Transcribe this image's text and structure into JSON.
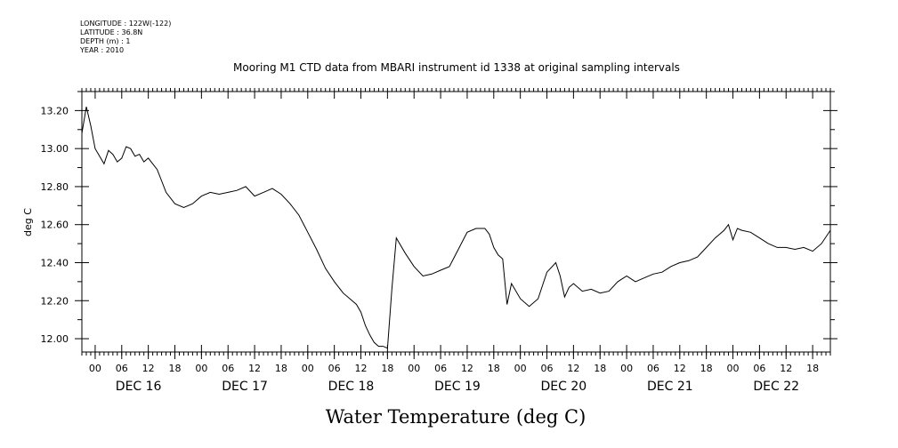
{
  "metadata": [
    {
      "label": "LONGITUDE",
      "value": "122W(-122)"
    },
    {
      "label": "LATITUDE",
      "value": "36.8N"
    },
    {
      "label": "DEPTH (m)",
      "value": "1"
    },
    {
      "label": "YEAR",
      "value": "2010"
    }
  ],
  "chart_data": {
    "type": "line",
    "title": "Mooring M1 CTD data from MBARI instrument id 1338 at original sampling intervals",
    "xlabel": "Water Temperature (deg C)",
    "ylabel": "deg C",
    "ylim": [
      11.93,
      13.3
    ],
    "yticks": [
      12.0,
      12.2,
      12.4,
      12.6,
      12.8,
      13.0,
      13.2
    ],
    "ytick_labels": [
      "12.00",
      "12.20",
      "12.40",
      "12.60",
      "12.80",
      "13.00",
      "13.20"
    ],
    "xlim": [
      "2010-12-15T21:00",
      "2010-12-22T22:00"
    ],
    "x_hour_ticks": [
      0,
      6,
      12,
      18
    ],
    "date_labels": [
      {
        "date": "2010-12-16",
        "label": "DEC 16"
      },
      {
        "date": "2010-12-17",
        "label": "DEC 17"
      },
      {
        "date": "2010-12-18",
        "label": "DEC 18"
      },
      {
        "date": "2010-12-19",
        "label": "DEC 19"
      },
      {
        "date": "2010-12-20",
        "label": "DEC 20"
      },
      {
        "date": "2010-12-21",
        "label": "DEC 21"
      },
      {
        "date": "2010-12-22",
        "label": "DEC 22"
      }
    ],
    "grid": false,
    "series": [
      {
        "color": "#000000",
        "x": [
          "2010-12-15T21:00",
          "2010-12-15T22:00",
          "2010-12-15T23:00",
          "2010-12-16T00:00",
          "2010-12-16T01:00",
          "2010-12-16T02:00",
          "2010-12-16T03:00",
          "2010-12-16T04:00",
          "2010-12-16T05:00",
          "2010-12-16T06:00",
          "2010-12-16T07:00",
          "2010-12-16T08:00",
          "2010-12-16T09:00",
          "2010-12-16T10:00",
          "2010-12-16T11:00",
          "2010-12-16T12:00",
          "2010-12-16T13:00",
          "2010-12-16T14:00",
          "2010-12-16T15:00",
          "2010-12-16T16:00",
          "2010-12-16T18:00",
          "2010-12-16T20:00",
          "2010-12-16T22:00",
          "2010-12-17T00:00",
          "2010-12-17T02:00",
          "2010-12-17T04:00",
          "2010-12-17T06:00",
          "2010-12-17T08:00",
          "2010-12-17T10:00",
          "2010-12-17T12:00",
          "2010-12-17T14:00",
          "2010-12-17T16:00",
          "2010-12-17T18:00",
          "2010-12-17T20:00",
          "2010-12-17T22:00",
          "2010-12-18T00:00",
          "2010-12-18T02:00",
          "2010-12-18T04:00",
          "2010-12-18T06:00",
          "2010-12-18T08:00",
          "2010-12-18T10:00",
          "2010-12-18T11:00",
          "2010-12-18T12:00",
          "2010-12-18T13:00",
          "2010-12-18T14:00",
          "2010-12-18T15:00",
          "2010-12-18T16:00",
          "2010-12-18T17:00",
          "2010-12-18T18:00",
          "2010-12-18T19:00",
          "2010-12-18T20:00",
          "2010-12-18T22:00",
          "2010-12-19T00:00",
          "2010-12-19T02:00",
          "2010-12-19T04:00",
          "2010-12-19T06:00",
          "2010-12-19T08:00",
          "2010-12-19T10:00",
          "2010-12-19T12:00",
          "2010-12-19T14:00",
          "2010-12-19T16:00",
          "2010-12-19T17:00",
          "2010-12-19T18:00",
          "2010-12-19T19:00",
          "2010-12-19T20:00",
          "2010-12-19T21:00",
          "2010-12-19T22:00",
          "2010-12-20T00:00",
          "2010-12-20T02:00",
          "2010-12-20T04:00",
          "2010-12-20T06:00",
          "2010-12-20T08:00",
          "2010-12-20T09:00",
          "2010-12-20T10:00",
          "2010-12-20T11:00",
          "2010-12-20T12:00",
          "2010-12-20T14:00",
          "2010-12-20T16:00",
          "2010-12-20T18:00",
          "2010-12-20T20:00",
          "2010-12-20T22:00",
          "2010-12-21T00:00",
          "2010-12-21T02:00",
          "2010-12-21T04:00",
          "2010-12-21T06:00",
          "2010-12-21T08:00",
          "2010-12-21T10:00",
          "2010-12-21T12:00",
          "2010-12-21T14:00",
          "2010-12-21T16:00",
          "2010-12-21T18:00",
          "2010-12-21T20:00",
          "2010-12-21T22:00",
          "2010-12-21T23:00",
          "2010-12-22T00:00",
          "2010-12-22T01:00",
          "2010-12-22T02:00",
          "2010-12-22T04:00",
          "2010-12-22T06:00",
          "2010-12-22T08:00",
          "2010-12-22T10:00",
          "2010-12-22T12:00",
          "2010-12-22T14:00",
          "2010-12-22T16:00",
          "2010-12-22T18:00",
          "2010-12-22T20:00",
          "2010-12-22T22:00"
        ],
        "y": [
          13.08,
          13.22,
          13.12,
          13.0,
          12.96,
          12.92,
          12.99,
          12.97,
          12.93,
          12.95,
          13.01,
          13.0,
          12.96,
          12.97,
          12.93,
          12.95,
          12.92,
          12.89,
          12.83,
          12.77,
          12.71,
          12.69,
          12.71,
          12.75,
          12.77,
          12.76,
          12.77,
          12.78,
          12.8,
          12.75,
          12.77,
          12.79,
          12.76,
          12.71,
          12.65,
          12.56,
          12.47,
          12.37,
          12.3,
          12.24,
          12.2,
          12.18,
          12.14,
          12.07,
          12.02,
          11.98,
          11.96,
          11.96,
          11.95,
          12.26,
          12.53,
          12.45,
          12.38,
          12.33,
          12.34,
          12.36,
          12.38,
          12.47,
          12.56,
          12.58,
          12.58,
          12.55,
          12.48,
          12.44,
          12.42,
          12.18,
          12.29,
          12.21,
          12.17,
          12.21,
          12.35,
          12.4,
          12.33,
          12.22,
          12.27,
          12.29,
          12.25,
          12.26,
          12.24,
          12.25,
          12.3,
          12.33,
          12.3,
          12.32,
          12.34,
          12.35,
          12.38,
          12.4,
          12.41,
          12.43,
          12.48,
          12.53,
          12.57,
          12.6,
          12.52,
          12.58,
          12.57,
          12.56,
          12.53,
          12.5,
          12.48,
          12.48,
          12.47,
          12.48,
          12.46,
          12.5,
          12.57
        ]
      }
    ]
  }
}
